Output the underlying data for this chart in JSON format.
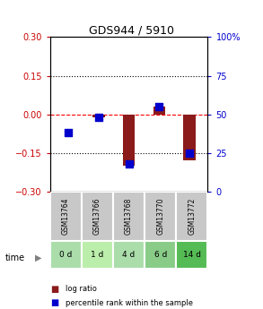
{
  "title": "GDS944 / 5910",
  "samples": [
    "GSM13764",
    "GSM13766",
    "GSM13768",
    "GSM13770",
    "GSM13772"
  ],
  "time_labels": [
    "0 d",
    "1 d",
    "4 d",
    "6 d",
    "14 d"
  ],
  "log_ratios": [
    0.0,
    -0.01,
    -0.2,
    0.03,
    -0.18
  ],
  "percentile_ranks": [
    38,
    48,
    18,
    55,
    25
  ],
  "ylim_left": [
    -0.3,
    0.3
  ],
  "ylim_right": [
    0,
    100
  ],
  "left_ticks": [
    -0.3,
    -0.15,
    0,
    0.15,
    0.3
  ],
  "right_ticks": [
    0,
    25,
    50,
    75,
    100
  ],
  "dotted_lines": [
    -0.15,
    0.15
  ],
  "bar_color": "#8B1A1A",
  "dot_color": "#0000CC",
  "left_tick_color": "#CC0000",
  "right_tick_color": "#0000CC",
  "bar_width": 0.4,
  "dot_size": 40,
  "sample_bg_color": "#C8C8C8",
  "time_bg_colors": [
    "#AADDAA",
    "#BBEEAA",
    "#AADDAA",
    "#88CC88",
    "#55BB55"
  ],
  "legend_bar_color": "#8B1A1A",
  "legend_dot_color": "#0000CC"
}
